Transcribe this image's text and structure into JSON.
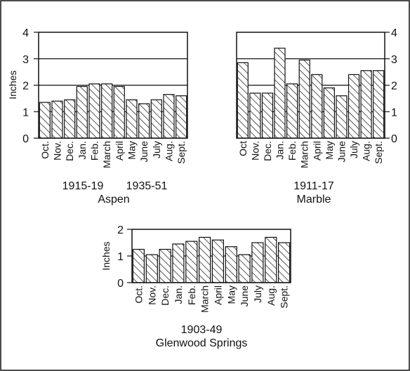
{
  "chart_data": [
    {
      "type": "bar",
      "categories": [
        "Oct.",
        "Nov.",
        "Dec.",
        "Jan.",
        "Feb.",
        "March",
        "April",
        "May",
        "June",
        "July",
        "Aug.",
        "Sept."
      ],
      "values": [
        1.35,
        1.4,
        1.45,
        1.95,
        2.05,
        2.05,
        1.95,
        1.45,
        1.3,
        1.45,
        1.65,
        1.6
      ],
      "ylabel": "Inches",
      "ylim": [
        0,
        4
      ],
      "yticks": [
        "0",
        "1",
        "2",
        "3",
        "4"
      ],
      "period_labels": [
        "1915-19",
        "1935-51"
      ],
      "station": "Aspen",
      "grid": true
    },
    {
      "type": "bar",
      "categories": [
        "Oct",
        "Nov.",
        "Dec.",
        "Jan.",
        "Feb.",
        "March",
        "April",
        "May",
        "June",
        "July",
        "Aug.",
        "Sept."
      ],
      "values": [
        2.85,
        1.7,
        1.7,
        3.4,
        2.05,
        2.95,
        2.4,
        1.9,
        1.6,
        2.4,
        2.55,
        2.55
      ],
      "ylim": [
        0,
        4
      ],
      "yticks": [
        "0",
        "1",
        "2",
        "3",
        "4"
      ],
      "period_labels": [
        "1911-17"
      ],
      "station": "Marble",
      "grid": true
    },
    {
      "type": "bar",
      "categories": [
        "Oct.",
        "Nov.",
        "Dec.",
        "Jan.",
        "Feb.",
        "March",
        "April",
        "May",
        "June",
        "July",
        "Aug.",
        "Sept."
      ],
      "values": [
        1.25,
        1.05,
        1.25,
        1.45,
        1.55,
        1.7,
        1.6,
        1.35,
        1.05,
        1.5,
        1.7,
        1.5
      ],
      "ylabel": "Inches",
      "ylim": [
        0,
        2
      ],
      "yticks": [
        "0",
        "1",
        "2"
      ],
      "period_labels": [
        "1903-49"
      ],
      "station": "Glenwood Springs",
      "grid": true
    }
  ]
}
